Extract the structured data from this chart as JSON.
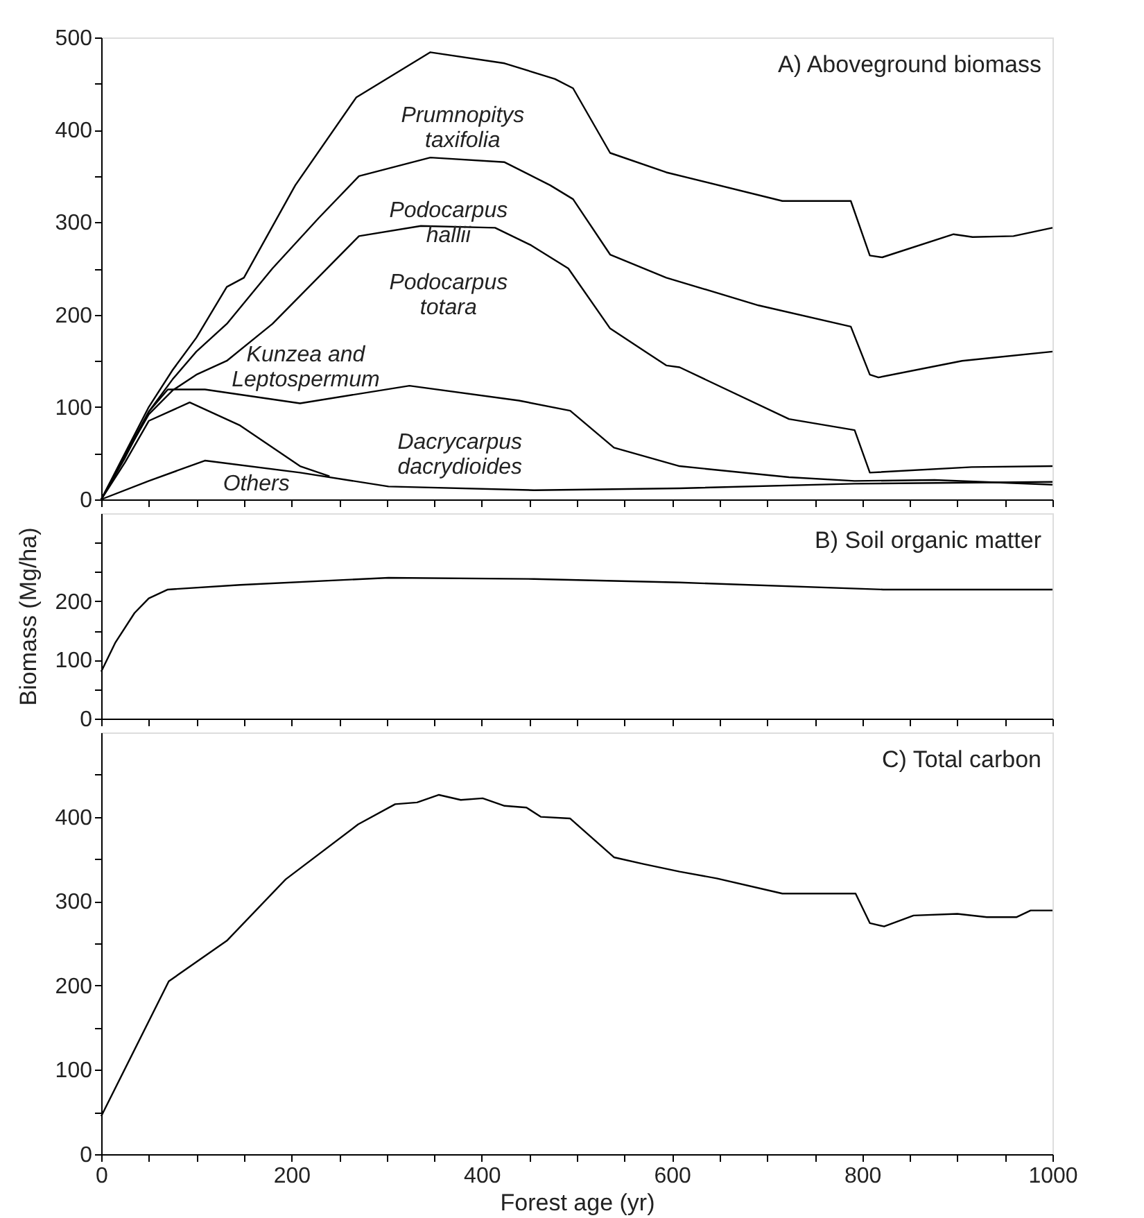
{
  "chart_data": [
    {
      "type": "line",
      "title": "A)  Aboveground biomass",
      "xlim": [
        0,
        1000
      ],
      "ylim": [
        0,
        500
      ],
      "tick_labels": "y",
      "grid": false,
      "line_style": "solid",
      "marker": "none",
      "xticks": [
        0,
        {
          "value": 50,
          "label": null
        },
        {
          "value": 100,
          "label": null
        },
        {
          "value": 150,
          "label": null
        },
        {
          "value": 200,
          "label": null
        },
        {
          "value": 250,
          "label": null
        },
        {
          "value": 300,
          "label": null
        },
        {
          "value": 350,
          "label": null
        },
        {
          "value": 400,
          "label": null
        },
        {
          "value": 450,
          "label": null
        },
        {
          "value": 500,
          "label": null
        },
        {
          "value": 550,
          "label": null
        },
        {
          "value": 600,
          "label": null
        },
        {
          "value": 650,
          "label": null
        },
        {
          "value": 700,
          "label": null
        },
        {
          "value": 750,
          "label": null
        },
        {
          "value": 800,
          "label": null
        },
        {
          "value": 850,
          "label": null
        },
        {
          "value": 900,
          "label": null
        },
        {
          "value": 950,
          "label": null
        },
        {
          "value": 1000,
          "label": null
        }
      ],
      "yticks": [
        0,
        {
          "value": 50,
          "label": null
        },
        100,
        {
          "value": 150,
          "label": null
        },
        200,
        {
          "value": 250,
          "label": null
        },
        300,
        {
          "value": 350,
          "label": null
        },
        400,
        {
          "value": 450,
          "label": null
        },
        500
      ],
      "series": [
        {
          "color": "#000000",
          "x": [
            0,
            25,
            50,
            75,
            100,
            132,
            150,
            204,
            268,
            346,
            424,
            477,
            496,
            535,
            594,
            716,
            788,
            808,
            821,
            896,
            916,
            959,
            1000
          ],
          "values": [
            0,
            50,
            100,
            140,
            175,
            230,
            240,
            340,
            435,
            484,
            472,
            455,
            445,
            375,
            354,
            323,
            323,
            264,
            262,
            287,
            284,
            285,
            294
          ]
        },
        {
          "color": "#000000",
          "x": [
            0,
            25,
            50,
            75,
            100,
            132,
            180,
            229,
            271,
            346,
            424,
            472,
            496,
            535,
            594,
            691,
            788,
            808,
            817,
            905,
            1000
          ],
          "values": [
            0,
            48,
            95,
            130,
            160,
            190,
            250,
            305,
            350,
            370,
            365,
            340,
            325,
            265,
            240,
            210,
            187,
            135,
            132,
            150,
            160
          ]
        },
        {
          "color": "#000000",
          "x": [
            0,
            25,
            50,
            75,
            100,
            132,
            180,
            271,
            336,
            414,
            452,
            491,
            535,
            594,
            608,
            723,
            792,
            808,
            915,
            1000
          ],
          "values": [
            0,
            47,
            92,
            118,
            135,
            150,
            190,
            285,
            296,
            294,
            275,
            250,
            185,
            145,
            143,
            87,
            75,
            29,
            35,
            36
          ]
        },
        {
          "color": "#000000",
          "x": [
            0,
            25,
            50,
            70,
            109,
            209,
            324,
            439,
            493,
            539,
            608,
            723,
            792,
            876,
            1000
          ],
          "values": [
            0,
            45,
            95,
            119,
            119,
            104,
            123,
            107,
            96,
            56,
            36,
            24,
            20,
            21,
            16
          ]
        },
        {
          "color": "#000000",
          "x": [
            0,
            25,
            50,
            93,
            146,
            209,
            240
          ],
          "values": [
            0,
            40,
            85,
            105,
            80,
            36,
            25
          ]
        },
        {
          "color": "#000000",
          "x": [
            0,
            50,
            109,
            209,
            302,
            455,
            608,
            792,
            1000
          ],
          "values": [
            0,
            20,
            42,
            29,
            14,
            10,
            12,
            17,
            19
          ]
        }
      ],
      "annotations": [
        "Prumnopitys\ntaxifolia",
        "Podocarpus\nhallii",
        "Podocarpus\ntotara",
        "Kunzea and\nLeptospermum",
        "Dacrycarpus\ndacrydioides",
        "Others"
      ]
    },
    {
      "type": "line",
      "title": "B)  Soil organic matter",
      "ylabel": "Biomass (Mg/ha)",
      "xlim": [
        0,
        1000
      ],
      "ylim": [
        0,
        350
      ],
      "tick_labels": "y",
      "grid": false,
      "line_style": "solid",
      "marker": "none",
      "xticks": [
        0,
        {
          "value": 50,
          "label": null
        },
        {
          "value": 100,
          "label": null
        },
        {
          "value": 150,
          "label": null
        },
        {
          "value": 200,
          "label": null
        },
        {
          "value": 250,
          "label": null
        },
        {
          "value": 300,
          "label": null
        },
        {
          "value": 350,
          "label": null
        },
        {
          "value": 400,
          "label": null
        },
        {
          "value": 450,
          "label": null
        },
        {
          "value": 500,
          "label": null
        },
        {
          "value": 550,
          "label": null
        },
        {
          "value": 600,
          "label": null
        },
        {
          "value": 650,
          "label": null
        },
        {
          "value": 700,
          "label": null
        },
        {
          "value": 750,
          "label": null
        },
        {
          "value": 800,
          "label": null
        },
        {
          "value": 850,
          "label": null
        },
        {
          "value": 900,
          "label": null
        },
        {
          "value": 950,
          "label": null
        },
        {
          "value": 1000,
          "label": null
        }
      ],
      "yticks": [
        0,
        {
          "value": 50,
          "label": null
        },
        100,
        {
          "value": 150,
          "label": null
        },
        200,
        {
          "value": 250,
          "label": null
        },
        {
          "value": 300,
          "label": null
        }
      ],
      "series": [
        {
          "color": "#000000",
          "x": [
            0,
            15,
            35,
            50,
            70,
            146,
            302,
            455,
            608,
            822,
            1000
          ],
          "values": [
            80,
            130,
            180,
            205,
            220,
            228,
            240,
            238,
            232,
            220,
            220
          ]
        }
      ]
    },
    {
      "type": "line",
      "title": "C)  Total carbon",
      "xlabel": "Forest age (yr)",
      "xlim": [
        0,
        1000
      ],
      "ylim": [
        0,
        500
      ],
      "grid": false,
      "line_style": "solid",
      "marker": "none",
      "xticks": [
        0,
        {
          "value": 50,
          "label": null
        },
        {
          "value": 100,
          "label": null
        },
        {
          "value": 150,
          "label": null
        },
        200,
        {
          "value": 250,
          "label": null
        },
        {
          "value": 300,
          "label": null
        },
        {
          "value": 350,
          "label": null
        },
        400,
        {
          "value": 450,
          "label": null
        },
        {
          "value": 500,
          "label": null
        },
        {
          "value": 550,
          "label": null
        },
        600,
        {
          "value": 650,
          "label": null
        },
        {
          "value": 700,
          "label": null
        },
        {
          "value": 750,
          "label": null
        },
        800,
        {
          "value": 850,
          "label": null
        },
        {
          "value": 900,
          "label": null
        },
        {
          "value": 950,
          "label": null
        },
        1000
      ],
      "yticks": [
        0,
        {
          "value": 50,
          "label": null
        },
        100,
        {
          "value": 150,
          "label": null
        },
        200,
        {
          "value": 250,
          "label": null
        },
        300,
        {
          "value": 350,
          "label": null
        },
        400,
        {
          "value": 450,
          "label": null
        }
      ],
      "series": [
        {
          "color": "#000000",
          "x": [
            0,
            71,
            132,
            194,
            270,
            309,
            332,
            355,
            378,
            401,
            424,
            447,
            462,
            493,
            539,
            570,
            608,
            647,
            716,
            793,
            808,
            823,
            854,
            900,
            931,
            962,
            977,
            1000
          ],
          "values": [
            45,
            205,
            253,
            326,
            391,
            415,
            417,
            426,
            420,
            422,
            413,
            411,
            400,
            398,
            352,
            344,
            335,
            327,
            309,
            309,
            274,
            270,
            283,
            285,
            281,
            281,
            289,
            289
          ]
        }
      ]
    }
  ]
}
